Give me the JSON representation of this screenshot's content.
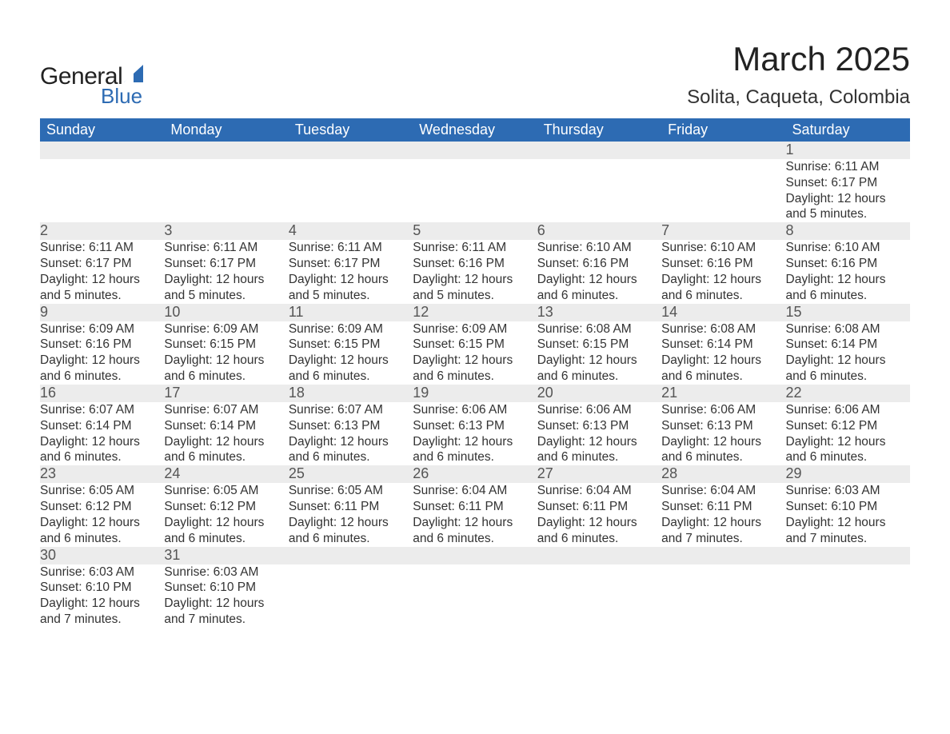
{
  "brand": {
    "part1": "General",
    "part2": "Blue",
    "accent_color": "#2d6bb3"
  },
  "title": "March 2025",
  "subtitle": "Solita, Caqueta, Colombia",
  "header_bg": "#2d6bb3",
  "header_fg": "#ffffff",
  "daynum_bg": "#ececec",
  "border_color": "#2d6bb3",
  "text_color": "#333333",
  "font_family": "Arial",
  "title_fontsize": 42,
  "subtitle_fontsize": 24,
  "header_fontsize": 18,
  "body_fontsize": 15.5,
  "day_headers": [
    "Sunday",
    "Monday",
    "Tuesday",
    "Wednesday",
    "Thursday",
    "Friday",
    "Saturday"
  ],
  "weeks": [
    [
      null,
      null,
      null,
      null,
      null,
      null,
      {
        "n": "1",
        "sr": "Sunrise: 6:11 AM",
        "ss": "Sunset: 6:17 PM",
        "d1": "Daylight: 12 hours",
        "d2": "and 5 minutes."
      }
    ],
    [
      {
        "n": "2",
        "sr": "Sunrise: 6:11 AM",
        "ss": "Sunset: 6:17 PM",
        "d1": "Daylight: 12 hours",
        "d2": "and 5 minutes."
      },
      {
        "n": "3",
        "sr": "Sunrise: 6:11 AM",
        "ss": "Sunset: 6:17 PM",
        "d1": "Daylight: 12 hours",
        "d2": "and 5 minutes."
      },
      {
        "n": "4",
        "sr": "Sunrise: 6:11 AM",
        "ss": "Sunset: 6:17 PM",
        "d1": "Daylight: 12 hours",
        "d2": "and 5 minutes."
      },
      {
        "n": "5",
        "sr": "Sunrise: 6:11 AM",
        "ss": "Sunset: 6:16 PM",
        "d1": "Daylight: 12 hours",
        "d2": "and 5 minutes."
      },
      {
        "n": "6",
        "sr": "Sunrise: 6:10 AM",
        "ss": "Sunset: 6:16 PM",
        "d1": "Daylight: 12 hours",
        "d2": "and 6 minutes."
      },
      {
        "n": "7",
        "sr": "Sunrise: 6:10 AM",
        "ss": "Sunset: 6:16 PM",
        "d1": "Daylight: 12 hours",
        "d2": "and 6 minutes."
      },
      {
        "n": "8",
        "sr": "Sunrise: 6:10 AM",
        "ss": "Sunset: 6:16 PM",
        "d1": "Daylight: 12 hours",
        "d2": "and 6 minutes."
      }
    ],
    [
      {
        "n": "9",
        "sr": "Sunrise: 6:09 AM",
        "ss": "Sunset: 6:16 PM",
        "d1": "Daylight: 12 hours",
        "d2": "and 6 minutes."
      },
      {
        "n": "10",
        "sr": "Sunrise: 6:09 AM",
        "ss": "Sunset: 6:15 PM",
        "d1": "Daylight: 12 hours",
        "d2": "and 6 minutes."
      },
      {
        "n": "11",
        "sr": "Sunrise: 6:09 AM",
        "ss": "Sunset: 6:15 PM",
        "d1": "Daylight: 12 hours",
        "d2": "and 6 minutes."
      },
      {
        "n": "12",
        "sr": "Sunrise: 6:09 AM",
        "ss": "Sunset: 6:15 PM",
        "d1": "Daylight: 12 hours",
        "d2": "and 6 minutes."
      },
      {
        "n": "13",
        "sr": "Sunrise: 6:08 AM",
        "ss": "Sunset: 6:15 PM",
        "d1": "Daylight: 12 hours",
        "d2": "and 6 minutes."
      },
      {
        "n": "14",
        "sr": "Sunrise: 6:08 AM",
        "ss": "Sunset: 6:14 PM",
        "d1": "Daylight: 12 hours",
        "d2": "and 6 minutes."
      },
      {
        "n": "15",
        "sr": "Sunrise: 6:08 AM",
        "ss": "Sunset: 6:14 PM",
        "d1": "Daylight: 12 hours",
        "d2": "and 6 minutes."
      }
    ],
    [
      {
        "n": "16",
        "sr": "Sunrise: 6:07 AM",
        "ss": "Sunset: 6:14 PM",
        "d1": "Daylight: 12 hours",
        "d2": "and 6 minutes."
      },
      {
        "n": "17",
        "sr": "Sunrise: 6:07 AM",
        "ss": "Sunset: 6:14 PM",
        "d1": "Daylight: 12 hours",
        "d2": "and 6 minutes."
      },
      {
        "n": "18",
        "sr": "Sunrise: 6:07 AM",
        "ss": "Sunset: 6:13 PM",
        "d1": "Daylight: 12 hours",
        "d2": "and 6 minutes."
      },
      {
        "n": "19",
        "sr": "Sunrise: 6:06 AM",
        "ss": "Sunset: 6:13 PM",
        "d1": "Daylight: 12 hours",
        "d2": "and 6 minutes."
      },
      {
        "n": "20",
        "sr": "Sunrise: 6:06 AM",
        "ss": "Sunset: 6:13 PM",
        "d1": "Daylight: 12 hours",
        "d2": "and 6 minutes."
      },
      {
        "n": "21",
        "sr": "Sunrise: 6:06 AM",
        "ss": "Sunset: 6:13 PM",
        "d1": "Daylight: 12 hours",
        "d2": "and 6 minutes."
      },
      {
        "n": "22",
        "sr": "Sunrise: 6:06 AM",
        "ss": "Sunset: 6:12 PM",
        "d1": "Daylight: 12 hours",
        "d2": "and 6 minutes."
      }
    ],
    [
      {
        "n": "23",
        "sr": "Sunrise: 6:05 AM",
        "ss": "Sunset: 6:12 PM",
        "d1": "Daylight: 12 hours",
        "d2": "and 6 minutes."
      },
      {
        "n": "24",
        "sr": "Sunrise: 6:05 AM",
        "ss": "Sunset: 6:12 PM",
        "d1": "Daylight: 12 hours",
        "d2": "and 6 minutes."
      },
      {
        "n": "25",
        "sr": "Sunrise: 6:05 AM",
        "ss": "Sunset: 6:11 PM",
        "d1": "Daylight: 12 hours",
        "d2": "and 6 minutes."
      },
      {
        "n": "26",
        "sr": "Sunrise: 6:04 AM",
        "ss": "Sunset: 6:11 PM",
        "d1": "Daylight: 12 hours",
        "d2": "and 6 minutes."
      },
      {
        "n": "27",
        "sr": "Sunrise: 6:04 AM",
        "ss": "Sunset: 6:11 PM",
        "d1": "Daylight: 12 hours",
        "d2": "and 6 minutes."
      },
      {
        "n": "28",
        "sr": "Sunrise: 6:04 AM",
        "ss": "Sunset: 6:11 PM",
        "d1": "Daylight: 12 hours",
        "d2": "and 7 minutes."
      },
      {
        "n": "29",
        "sr": "Sunrise: 6:03 AM",
        "ss": "Sunset: 6:10 PM",
        "d1": "Daylight: 12 hours",
        "d2": "and 7 minutes."
      }
    ],
    [
      {
        "n": "30",
        "sr": "Sunrise: 6:03 AM",
        "ss": "Sunset: 6:10 PM",
        "d1": "Daylight: 12 hours",
        "d2": "and 7 minutes."
      },
      {
        "n": "31",
        "sr": "Sunrise: 6:03 AM",
        "ss": "Sunset: 6:10 PM",
        "d1": "Daylight: 12 hours",
        "d2": "and 7 minutes."
      },
      null,
      null,
      null,
      null,
      null
    ]
  ]
}
